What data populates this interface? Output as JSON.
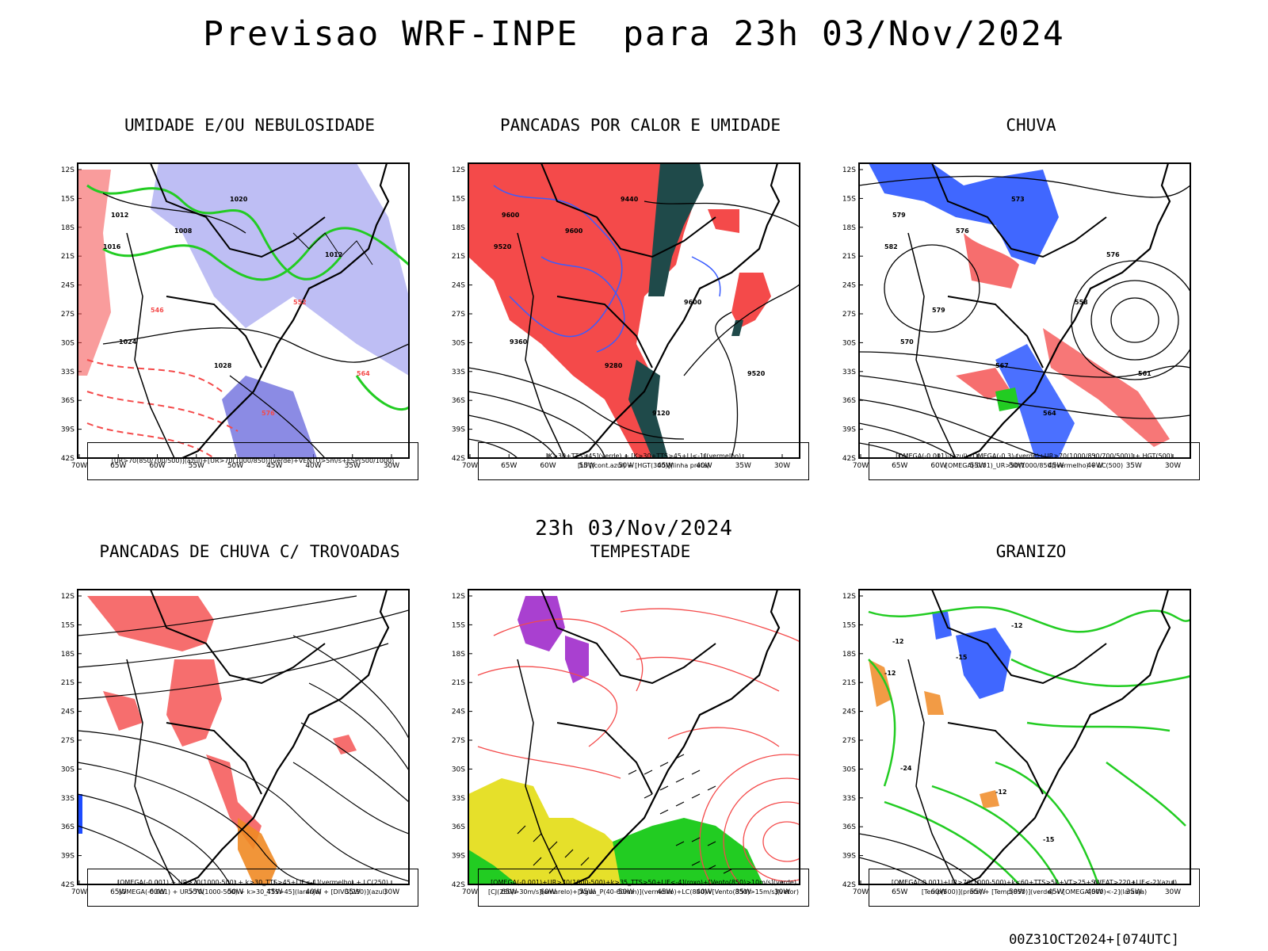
{
  "title": "Previsao WRF-INPE  para 23h 03/Nov/2024",
  "mid_time": "23h 03/Nov/2024",
  "footer_stamp": "00Z31OCT2024+[074UTC]",
  "axes": {
    "lat_labels": [
      "12S",
      "15S",
      "18S",
      "21S",
      "24S",
      "27S",
      "30S",
      "33S",
      "36S",
      "39S",
      "42S"
    ],
    "lon_labels": [
      "70W",
      "65W",
      "60W",
      "55W",
      "50W",
      "45W",
      "40W",
      "35W",
      "30W"
    ]
  },
  "panels": [
    {
      "title": "UMIDADE E/OU NEBULOSIDADE",
      "legend": [
        "[UR>70(850/700/500)](azul)+[UR>70(1000/850)](verde)+VENTO>5m/s+ESP(500/1000)"
      ],
      "contour_labels": [
        "1012",
        "1008",
        "1016",
        "1020",
        "1024",
        "1028",
        "576",
        "564",
        "552",
        "546",
        "1012"
      ]
    },
    {
      "title": "PANCADAS POR CALOR E UMIDADE",
      "legend": [
        "[K>30+TTS>45](verde) + [K>30+TTS>45+LI<-1](vermelho)",
        "[LIF](cont.azul) + [HGT(300)](linha preta)"
      ],
      "contour_labels": [
        "9600",
        "9600",
        "9520",
        "9440",
        "9360",
        "9280",
        "9120",
        "9520",
        "9600"
      ]
    },
    {
      "title": "CHUVA",
      "legend": [
        "[OMEGA(-0.001)-(azul)+OMEGA(-0.3)-(verde)+UR>70(1000/850/700/500)] + HGT(500)",
        "[OMEGA(-0.01)_UR>50(1000/850)(vermelho) + LC(500)"
      ],
      "contour_labels": [
        "579",
        "576",
        "582",
        "573",
        "570",
        "567",
        "564",
        "561",
        "558",
        "579",
        "576"
      ]
    },
    {
      "title": "PANCADAS DE CHUVA C/ TROVOADAS",
      "legend": [
        "[OMEGA(-0.001) + UR>70(1000-500) + k>30_TTS>45+LIF<-1](vermelho) + LC(250)",
        "[OMEGA(-0.001) + UR>70(1000-500) + k>30_TTS>45](laranja) + [DIVG(250)](azul)"
      ],
      "contour_labels": []
    },
    {
      "title": "TEMPESTADE",
      "legend": [
        "[OMEGA(-0.001)+UR>70(1000-500)+k>35_TTS>50+LIF<-4](roxo)+[Vento(850)>10m/s](verde)",
        "[CJ(250)>30m/s](amarelo)+[Agua_P(40-60mm)](vermelho)+LC(850)+[Vento(850)>15m/s](vetor)"
      ],
      "contour_labels": []
    },
    {
      "title": "GRANIZO",
      "legend": [
        "[OMEGA(-0.001)+UR>70(1000-500)+k<60+TTS>52+VT>25+SWEAT>220+LIF<-2](azul)",
        "[Temp(500)](preto) + [Temp(850)](verde) + [OMEGA(500)<-2](laranja)"
      ],
      "contour_labels": [
        "-12",
        "-15",
        "-12",
        "-12",
        "-24",
        "-12",
        "-15"
      ]
    }
  ],
  "colors": {
    "red": "#f44a4a",
    "green": "#22cc22",
    "blue": "#1e4cff",
    "lavender": "#a8a8f0",
    "dark_teal": "#1f4a4a",
    "yellow": "#e6e02a",
    "purple": "#9a1ec8",
    "orange": "#f08a24"
  }
}
